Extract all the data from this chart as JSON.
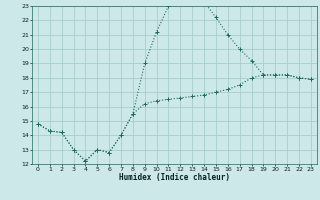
{
  "xlabel": "Humidex (Indice chaleur)",
  "bg_color": "#cce8e8",
  "grid_color": "#a8cccc",
  "line_color": "#1a6b5a",
  "xlim": [
    -0.5,
    23.5
  ],
  "ylim": [
    12,
    23
  ],
  "xticks": [
    0,
    1,
    2,
    3,
    4,
    5,
    6,
    7,
    8,
    9,
    10,
    11,
    12,
    13,
    14,
    15,
    16,
    17,
    18,
    19,
    20,
    21,
    22,
    23
  ],
  "yticks": [
    12,
    13,
    14,
    15,
    16,
    17,
    18,
    19,
    20,
    21,
    22,
    23
  ],
  "line1_x": [
    0,
    1,
    2,
    3,
    4,
    5,
    6,
    7,
    8,
    9,
    10,
    11,
    12,
    13,
    14,
    15,
    16,
    17,
    18,
    19,
    20,
    21,
    22,
    23
  ],
  "line1_y": [
    14.8,
    14.3,
    14.2,
    13.0,
    12.2,
    13.0,
    12.8,
    14.0,
    15.5,
    16.2,
    16.4,
    16.5,
    16.6,
    16.7,
    16.8,
    17.0,
    17.2,
    17.5,
    18.0,
    18.2,
    18.2,
    18.2,
    18.0,
    17.9
  ],
  "line2_x": [
    0,
    1,
    2,
    3,
    4,
    5,
    6,
    7,
    8,
    9,
    10,
    11,
    12,
    13,
    14,
    15,
    16,
    17,
    18,
    19,
    20,
    21,
    22,
    23
  ],
  "line2_y": [
    14.8,
    14.3,
    14.2,
    13.0,
    12.2,
    13.0,
    12.8,
    14.0,
    15.5,
    19.0,
    21.2,
    23.0,
    23.2,
    23.2,
    23.3,
    22.2,
    21.0,
    20.0,
    19.2,
    18.2,
    18.2,
    18.2,
    18.0,
    17.9
  ]
}
